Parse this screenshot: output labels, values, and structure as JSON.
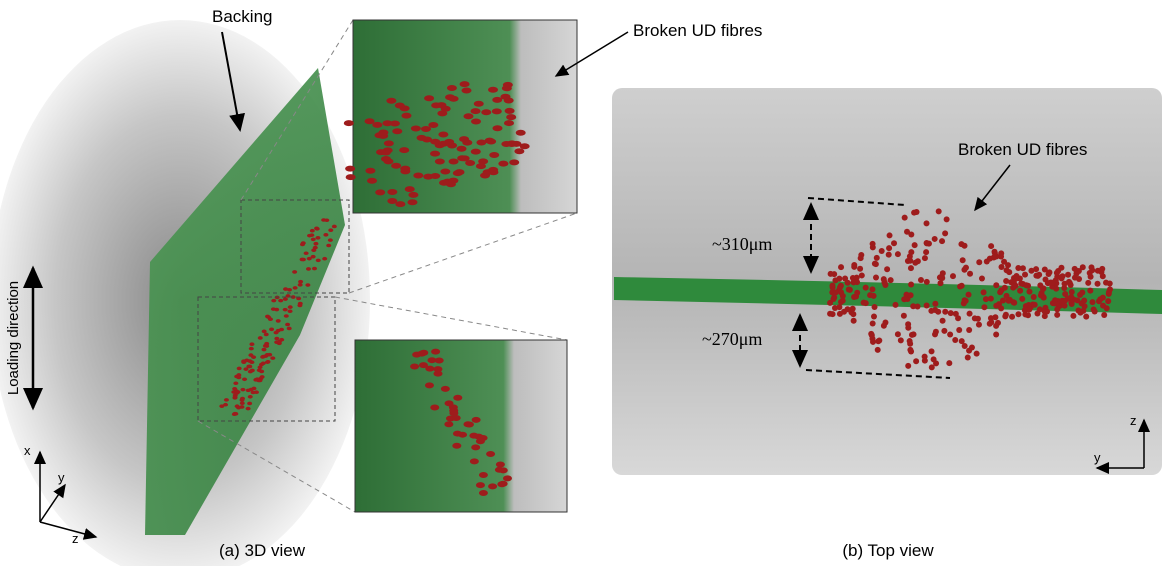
{
  "panels": [
    {
      "caption": "(a) 3D view",
      "labels": [
        "Backing",
        "Broken UD fibres",
        "Loading direction"
      ],
      "axes": [
        "x",
        "y",
        "z"
      ]
    },
    {
      "caption": "(b) Top view",
      "labels": [
        "Broken UD fibres"
      ],
      "dimensions": [
        "~310μm",
        "~270μm"
      ],
      "axes": [
        "z",
        "y"
      ]
    }
  ]
}
